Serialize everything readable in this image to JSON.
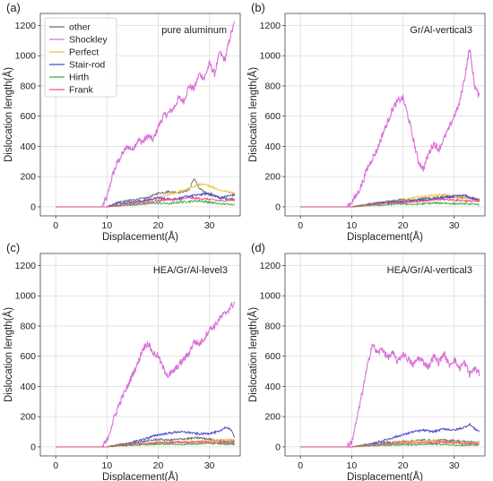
{
  "colors": {
    "other": "#6b6b6b",
    "Shockley": "#d970d9",
    "Perfect": "#f2c13c",
    "Stair-rod": "#4646cc",
    "Hirth": "#3fae3f",
    "Frank": "#e8508a"
  },
  "chart_data": [
    {
      "type": "line",
      "panel_label": "(a)",
      "title": "pure aluminum",
      "xlabel": "Displacement(Å)",
      "ylabel": "Dislocation length(Å)",
      "xlim": [
        -3,
        36
      ],
      "ylim": [
        -60,
        1280
      ],
      "xticks": [
        0,
        10,
        20,
        30
      ],
      "yticks": [
        0,
        200,
        400,
        600,
        800,
        1000,
        1200
      ],
      "grid": true,
      "legend": {
        "position": "top-left",
        "entries": [
          "other",
          "Shockley",
          "Perfect",
          "Stair-rod",
          "Hirth",
          "Frank"
        ]
      },
      "series": [
        {
          "name": "Shockley",
          "x": [
            0,
            9,
            10,
            11,
            12,
            13,
            14,
            15,
            16,
            17,
            18,
            19,
            20,
            21,
            22,
            23,
            24,
            25,
            26,
            27,
            28,
            29,
            30,
            31,
            32,
            33,
            34,
            35
          ],
          "y": [
            0,
            0,
            60,
            200,
            290,
            350,
            400,
            380,
            440,
            430,
            470,
            440,
            530,
            600,
            620,
            650,
            720,
            700,
            800,
            780,
            880,
            850,
            950,
            880,
            1020,
            970,
            1120,
            1230
          ]
        },
        {
          "name": "other",
          "x": [
            0,
            10,
            12,
            14,
            16,
            18,
            20,
            22,
            24,
            26,
            27,
            28,
            30,
            32,
            35
          ],
          "y": [
            0,
            0,
            30,
            40,
            50,
            60,
            90,
            100,
            95,
            110,
            190,
            120,
            80,
            60,
            50
          ]
        },
        {
          "name": "Perfect",
          "x": [
            0,
            10,
            12,
            14,
            16,
            18,
            20,
            22,
            24,
            26,
            28,
            30,
            32,
            35
          ],
          "y": [
            0,
            0,
            10,
            20,
            30,
            40,
            60,
            80,
            100,
            120,
            150,
            140,
            110,
            90
          ]
        },
        {
          "name": "Stair-rod",
          "x": [
            0,
            10,
            12,
            14,
            16,
            18,
            20,
            22,
            24,
            26,
            28,
            30,
            32,
            35
          ],
          "y": [
            0,
            0,
            20,
            30,
            35,
            45,
            60,
            50,
            55,
            70,
            80,
            90,
            60,
            80
          ]
        },
        {
          "name": "Hirth",
          "x": [
            0,
            10,
            12,
            14,
            16,
            18,
            20,
            22,
            24,
            26,
            28,
            30,
            32,
            35
          ],
          "y": [
            0,
            0,
            5,
            10,
            15,
            20,
            25,
            20,
            30,
            35,
            40,
            30,
            20,
            15
          ]
        },
        {
          "name": "Frank",
          "x": [
            0,
            10,
            12,
            14,
            16,
            18,
            20,
            22,
            24,
            26,
            28,
            30,
            32,
            35
          ],
          "y": [
            0,
            0,
            10,
            15,
            20,
            30,
            40,
            50,
            45,
            60,
            55,
            50,
            40,
            45
          ]
        }
      ]
    },
    {
      "type": "line",
      "panel_label": "(b)",
      "title": "Gr/Al-vertical3",
      "xlabel": "Displacement(Å)",
      "ylabel": "Dislocation length(Å)",
      "xlim": [
        -3,
        36
      ],
      "ylim": [
        -60,
        1280
      ],
      "xticks": [
        0,
        10,
        20,
        30
      ],
      "yticks": [
        0,
        200,
        400,
        600,
        800,
        1000,
        1200
      ],
      "grid": true,
      "series": [
        {
          "name": "Shockley",
          "x": [
            0,
            9,
            10,
            11,
            12,
            13,
            14,
            15,
            16,
            17,
            18,
            19,
            20,
            21,
            22,
            23,
            24,
            25,
            26,
            27,
            28,
            29,
            30,
            31,
            32,
            33,
            34,
            35
          ],
          "y": [
            0,
            0,
            30,
            80,
            150,
            250,
            320,
            380,
            480,
            560,
            650,
            700,
            720,
            600,
            450,
            300,
            250,
            350,
            420,
            380,
            450,
            520,
            600,
            680,
            850,
            1050,
            800,
            720
          ]
        },
        {
          "name": "other",
          "x": [
            0,
            10,
            12,
            14,
            16,
            18,
            20,
            22,
            24,
            26,
            28,
            30,
            32,
            35
          ],
          "y": [
            0,
            0,
            10,
            20,
            30,
            40,
            50,
            40,
            60,
            55,
            70,
            65,
            60,
            50
          ]
        },
        {
          "name": "Perfect",
          "x": [
            0,
            10,
            12,
            14,
            16,
            18,
            20,
            22,
            24,
            26,
            28,
            30,
            32,
            35
          ],
          "y": [
            0,
            0,
            5,
            15,
            25,
            30,
            40,
            60,
            70,
            75,
            80,
            70,
            60,
            55
          ]
        },
        {
          "name": "Stair-rod",
          "x": [
            0,
            10,
            12,
            14,
            16,
            18,
            20,
            22,
            24,
            26,
            28,
            30,
            32,
            35
          ],
          "y": [
            0,
            0,
            10,
            20,
            25,
            30,
            35,
            40,
            45,
            50,
            60,
            70,
            75,
            40
          ]
        },
        {
          "name": "Hirth",
          "x": [
            0,
            10,
            12,
            14,
            16,
            18,
            20,
            22,
            24,
            26,
            28,
            30,
            32,
            35
          ],
          "y": [
            0,
            0,
            5,
            10,
            10,
            15,
            20,
            15,
            20,
            25,
            25,
            20,
            20,
            15
          ]
        },
        {
          "name": "Frank",
          "x": [
            0,
            10,
            12,
            14,
            16,
            18,
            20,
            22,
            24,
            26,
            28,
            30,
            32,
            35
          ],
          "y": [
            0,
            0,
            10,
            15,
            20,
            25,
            30,
            35,
            40,
            45,
            50,
            45,
            40,
            35
          ]
        }
      ]
    },
    {
      "type": "line",
      "panel_label": "(c)",
      "title": "HEA/Gr/Al-level3",
      "xlabel": "Displacement(Å)",
      "ylabel": "Dislocation length(Å)",
      "xlim": [
        -3,
        36
      ],
      "ylim": [
        -60,
        1280
      ],
      "xticks": [
        0,
        10,
        20,
        30
      ],
      "yticks": [
        0,
        200,
        400,
        600,
        800,
        1000,
        1200
      ],
      "grid": true,
      "series": [
        {
          "name": "Shockley",
          "x": [
            0,
            9,
            10,
            11,
            12,
            13,
            14,
            15,
            16,
            17,
            18,
            19,
            20,
            21,
            22,
            23,
            24,
            25,
            26,
            27,
            28,
            29,
            30,
            31,
            32,
            33,
            34,
            35
          ],
          "y": [
            0,
            0,
            40,
            150,
            250,
            330,
            400,
            480,
            550,
            650,
            690,
            620,
            600,
            520,
            470,
            500,
            540,
            580,
            620,
            700,
            680,
            720,
            780,
            800,
            850,
            880,
            920,
            960
          ]
        },
        {
          "name": "Stair-rod",
          "x": [
            0,
            10,
            12,
            14,
            16,
            18,
            20,
            22,
            24,
            26,
            28,
            30,
            32,
            33,
            34,
            35
          ],
          "y": [
            0,
            0,
            10,
            20,
            40,
            60,
            80,
            90,
            100,
            95,
            85,
            90,
            100,
            130,
            120,
            60
          ]
        },
        {
          "name": "other",
          "x": [
            0,
            10,
            12,
            14,
            16,
            18,
            20,
            22,
            24,
            26,
            28,
            30,
            32,
            35
          ],
          "y": [
            0,
            0,
            15,
            20,
            30,
            40,
            50,
            45,
            50,
            55,
            60,
            50,
            40,
            35
          ]
        },
        {
          "name": "Perfect",
          "x": [
            0,
            10,
            12,
            14,
            16,
            18,
            20,
            22,
            24,
            26,
            28,
            30,
            32,
            35
          ],
          "y": [
            0,
            0,
            5,
            10,
            15,
            20,
            25,
            30,
            35,
            30,
            35,
            40,
            45,
            50
          ]
        },
        {
          "name": "Hirth",
          "x": [
            0,
            10,
            12,
            14,
            16,
            18,
            20,
            22,
            24,
            26,
            28,
            30,
            32,
            35
          ],
          "y": [
            0,
            0,
            5,
            10,
            12,
            15,
            18,
            20,
            15,
            18,
            20,
            25,
            20,
            18
          ]
        },
        {
          "name": "Frank",
          "x": [
            0,
            10,
            12,
            14,
            16,
            18,
            20,
            22,
            24,
            26,
            28,
            30,
            32,
            35
          ],
          "y": [
            0,
            0,
            10,
            15,
            20,
            25,
            30,
            28,
            32,
            30,
            35,
            30,
            28,
            25
          ]
        }
      ]
    },
    {
      "type": "line",
      "panel_label": "(d)",
      "title": "HEA/Gr/Al-vertical3",
      "xlabel": "Displacement(Å)",
      "ylabel": "Dislocation length(Å)",
      "xlim": [
        -3,
        36
      ],
      "ylim": [
        -60,
        1280
      ],
      "xticks": [
        0,
        10,
        20,
        30
      ],
      "yticks": [
        0,
        200,
        400,
        600,
        800,
        1000,
        1200
      ],
      "grid": true,
      "series": [
        {
          "name": "Shockley",
          "x": [
            0,
            9,
            10,
            11,
            12,
            13,
            14,
            15,
            16,
            17,
            18,
            19,
            20,
            21,
            22,
            23,
            24,
            25,
            26,
            27,
            28,
            29,
            30,
            31,
            32,
            33,
            34,
            35
          ],
          "y": [
            0,
            0,
            30,
            180,
            350,
            520,
            680,
            620,
            650,
            590,
            620,
            560,
            620,
            580,
            540,
            590,
            560,
            530,
            600,
            560,
            620,
            540,
            580,
            520,
            560,
            480,
            520,
            480
          ]
        },
        {
          "name": "Stair-rod",
          "x": [
            0,
            10,
            12,
            14,
            16,
            18,
            20,
            22,
            24,
            26,
            28,
            30,
            32,
            33,
            34,
            35
          ],
          "y": [
            0,
            0,
            10,
            20,
            40,
            60,
            80,
            100,
            110,
            100,
            120,
            110,
            130,
            150,
            120,
            100
          ]
        },
        {
          "name": "other",
          "x": [
            0,
            10,
            12,
            14,
            16,
            18,
            20,
            22,
            24,
            26,
            28,
            30,
            32,
            35
          ],
          "y": [
            0,
            0,
            10,
            20,
            25,
            30,
            35,
            40,
            45,
            40,
            45,
            40,
            35,
            30
          ]
        },
        {
          "name": "Perfect",
          "x": [
            0,
            10,
            12,
            14,
            16,
            18,
            20,
            22,
            24,
            26,
            28,
            30,
            32,
            35
          ],
          "y": [
            0,
            0,
            5,
            10,
            15,
            25,
            30,
            35,
            30,
            40,
            35,
            30,
            25,
            30
          ]
        },
        {
          "name": "Hirth",
          "x": [
            0,
            10,
            12,
            14,
            16,
            18,
            20,
            22,
            24,
            26,
            28,
            30,
            32,
            35
          ],
          "y": [
            0,
            0,
            5,
            8,
            10,
            12,
            15,
            12,
            15,
            18,
            15,
            12,
            10,
            12
          ]
        },
        {
          "name": "Frank",
          "x": [
            0,
            10,
            12,
            14,
            16,
            18,
            20,
            22,
            24,
            26,
            28,
            30,
            32,
            35
          ],
          "y": [
            0,
            0,
            8,
            12,
            15,
            20,
            25,
            22,
            28,
            25,
            30,
            28,
            22,
            20
          ]
        }
      ]
    }
  ]
}
